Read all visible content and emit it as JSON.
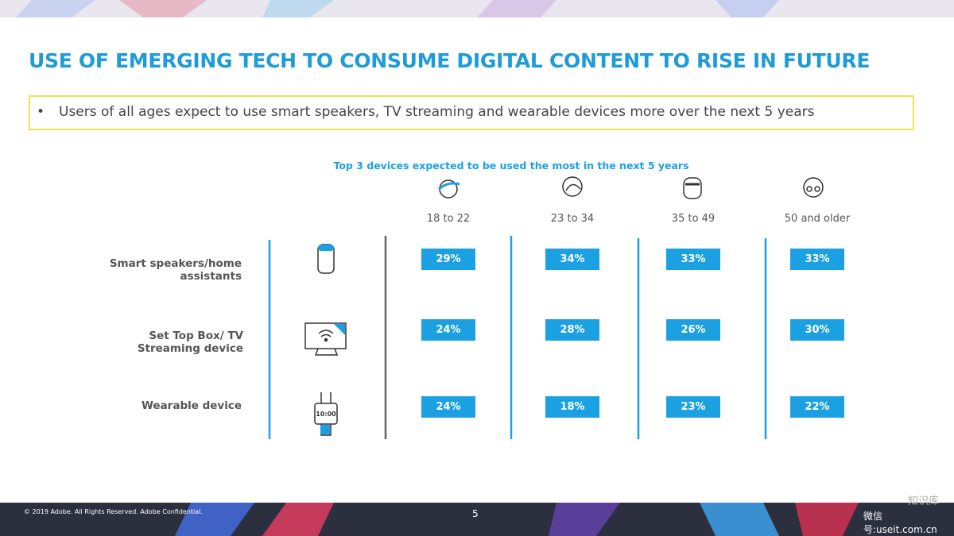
{
  "header": {
    "title": "USE OF EMERGING TECH TO CONSUME DIGITAL CONTENT TO RISE IN FUTURE",
    "bullet": "Users of all ages expect to use smart speakers, TV streaming and wearable devices more over the next 5 years"
  },
  "table": {
    "caption": "Top 3 devices expected to be used the most in the next 5 years",
    "columns": [
      "18 to 22",
      "23 to 34",
      "35 to 49",
      "50 and older"
    ],
    "rows": [
      {
        "label": "Smart speakers/home assistants",
        "values": [
          "29%",
          "34%",
          "33%",
          "33%"
        ]
      },
      {
        "label": "Set Top Box/ TV Streaming device",
        "values": [
          "24%",
          "28%",
          "26%",
          "30%"
        ]
      },
      {
        "label": "Wearable device",
        "values": [
          "24%",
          "18%",
          "23%",
          "22%"
        ]
      }
    ]
  },
  "footer": {
    "copyright": "© 2019 Adobe.  All Rights Reserved.  Adobe Confidential.",
    "page": "5",
    "watermark": "微信号:useit.com.cn",
    "watermark_title": "知识库"
  }
}
